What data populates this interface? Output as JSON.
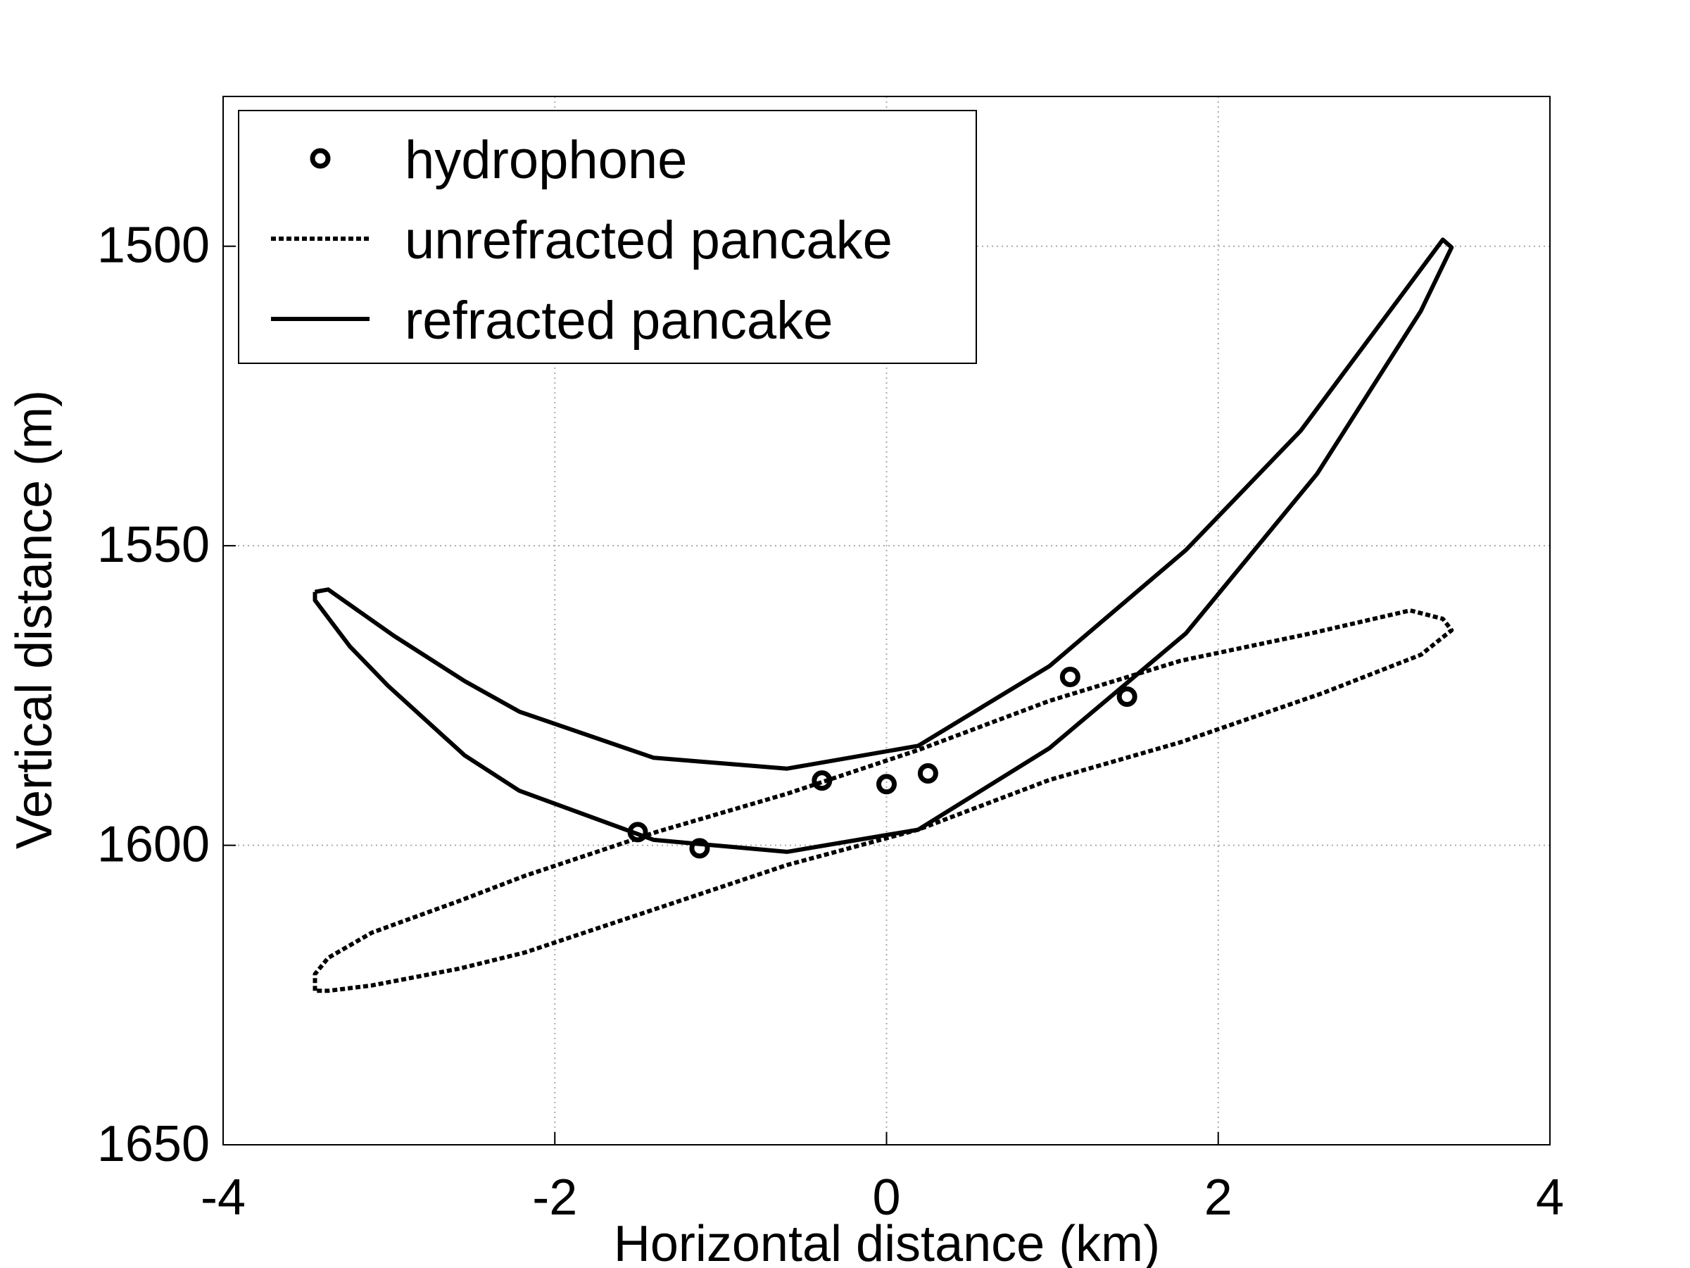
{
  "chart_data": {
    "type": "line",
    "x_label": "Horizontal distance (km)",
    "y_label": "Vertical distance (m)",
    "xlim": [
      -4,
      4
    ],
    "xticks": [
      -4,
      -2,
      0,
      2,
      4
    ],
    "ylim": [
      1475,
      1650
    ],
    "yticks": [
      1500,
      1550,
      1600,
      1650
    ],
    "y_inverted": true,
    "grid": true,
    "legend": "upper left",
    "series": [
      {
        "name": "hydrophone",
        "color": "#000000",
        "style": "marker",
        "x": [
          -1.5,
          -1.127,
          -0.389,
          0.0,
          0.25,
          1.107,
          1.45
        ],
        "values": [
          1597.8,
          1600.5,
          1589.2,
          1589.8,
          1588.0,
          1571.9,
          1575.2
        ]
      },
      {
        "name": "unrefracted pancake",
        "color": "#000000",
        "style": "dotted",
        "x": [
          -3.446,
          -3.446,
          -3.367,
          -3.104,
          -2.577,
          -2.181,
          -1.39,
          -0.6,
          0.191,
          0.982,
          1.773,
          2.563,
          3.157,
          3.354,
          3.407,
          3.222,
          2.629,
          1.773,
          0.982,
          0.191,
          -0.6,
          -1.39,
          -2.181,
          -2.577,
          -3.104,
          -3.367,
          -3.446
        ],
        "values": [
          1624.3,
          1621.5,
          1618.8,
          1614.6,
          1609.3,
          1605.1,
          1597.8,
          1591.4,
          1584.1,
          1575.9,
          1569.2,
          1564.6,
          1560.8,
          1562.2,
          1564.1,
          1568.2,
          1574.6,
          1582.8,
          1589.1,
          1597.4,
          1603.3,
          1610.6,
          1617.9,
          1620.6,
          1623.4,
          1624.3,
          1624.3
        ]
      },
      {
        "name": "refracted pancake",
        "color": "#000000",
        "style": "solid",
        "x": [
          -3.446,
          -3.367,
          -2.972,
          -2.544,
          -2.214,
          -1.404,
          -0.6,
          0.191,
          0.982,
          1.806,
          2.497,
          3.124,
          3.354,
          3.407,
          3.222,
          2.596,
          1.806,
          0.982,
          0.191,
          -0.6,
          -1.404,
          -2.214,
          -2.544,
          -3.005,
          -3.236,
          -3.446,
          -3.446
        ],
        "values": [
          1557.7,
          1557.3,
          1565.0,
          1572.6,
          1577.7,
          1585.4,
          1587.2,
          1583.4,
          1570.1,
          1550.7,
          1530.8,
          1507.5,
          1498.9,
          1500.2,
          1510.8,
          1538.0,
          1564.6,
          1583.8,
          1597.4,
          1601.1,
          1599.1,
          1590.9,
          1585.0,
          1573.4,
          1566.8,
          1559.1,
          1557.7
        ]
      }
    ]
  }
}
